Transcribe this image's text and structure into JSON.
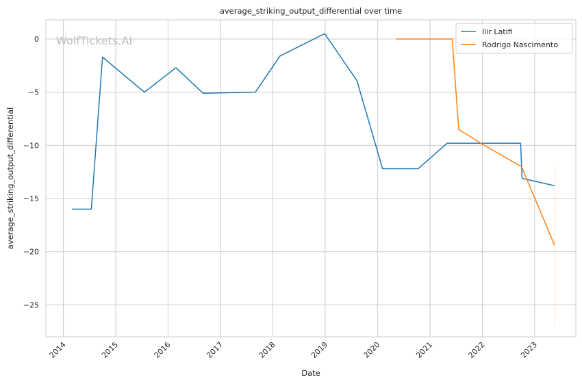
{
  "chart_data": {
    "type": "line",
    "title": "average_striking_output_differential over time",
    "xlabel": "Date",
    "ylabel": "average_striking_output_differential",
    "watermark": "WolfTickets.AI",
    "xlim": [
      "2013-09-01",
      "2023-10-15"
    ],
    "ylim": [
      -28.0,
      1.8
    ],
    "x_ticks": [
      "2014",
      "2015",
      "2016",
      "2017",
      "2018",
      "2019",
      "2020",
      "2021",
      "2022",
      "2023"
    ],
    "y_ticks": [
      0,
      -5,
      -10,
      -15,
      -20,
      -25
    ],
    "y_tick_labels": [
      "0",
      "−5",
      "−10",
      "−15",
      "−20",
      "−25"
    ],
    "grid": true,
    "legend_position": "top-right",
    "series": [
      {
        "name": "Ilir Latifi",
        "color": "#1f77b4",
        "points": [
          [
            "2014-03-01",
            -16.0
          ],
          [
            "2014-07-15",
            -16.0
          ],
          [
            "2014-10-01",
            -1.7
          ],
          [
            "2015-07-20",
            -5.0
          ],
          [
            "2016-02-25",
            -2.7
          ],
          [
            "2016-09-01",
            -5.1
          ],
          [
            "2017-09-01",
            -5.0
          ],
          [
            "2018-02-20",
            -1.6
          ],
          [
            "2018-12-28",
            0.5
          ],
          [
            "2019-08-10",
            -3.9
          ],
          [
            "2020-02-05",
            -12.2
          ],
          [
            "2020-10-10",
            -12.2
          ],
          [
            "2021-05-01",
            -9.8
          ],
          [
            "2022-09-25",
            -9.8
          ],
          [
            "2022-10-05",
            -13.1
          ],
          [
            "2023-05-20",
            -13.8
          ]
        ]
      },
      {
        "name": "Rodrigo Nascimento",
        "color": "#ff7f0e",
        "points": [
          [
            "2020-05-09",
            0.0
          ],
          [
            "2021-06-05",
            0.0
          ],
          [
            "2021-07-20",
            -8.5
          ],
          [
            "2022-01-01",
            -9.9
          ],
          [
            "2022-10-01",
            -12.0
          ],
          [
            "2023-05-20",
            -19.4
          ]
        ],
        "band": {
          "x": "2023-05-20",
          "low": -26.8,
          "high": -12.0
        }
      }
    ]
  }
}
